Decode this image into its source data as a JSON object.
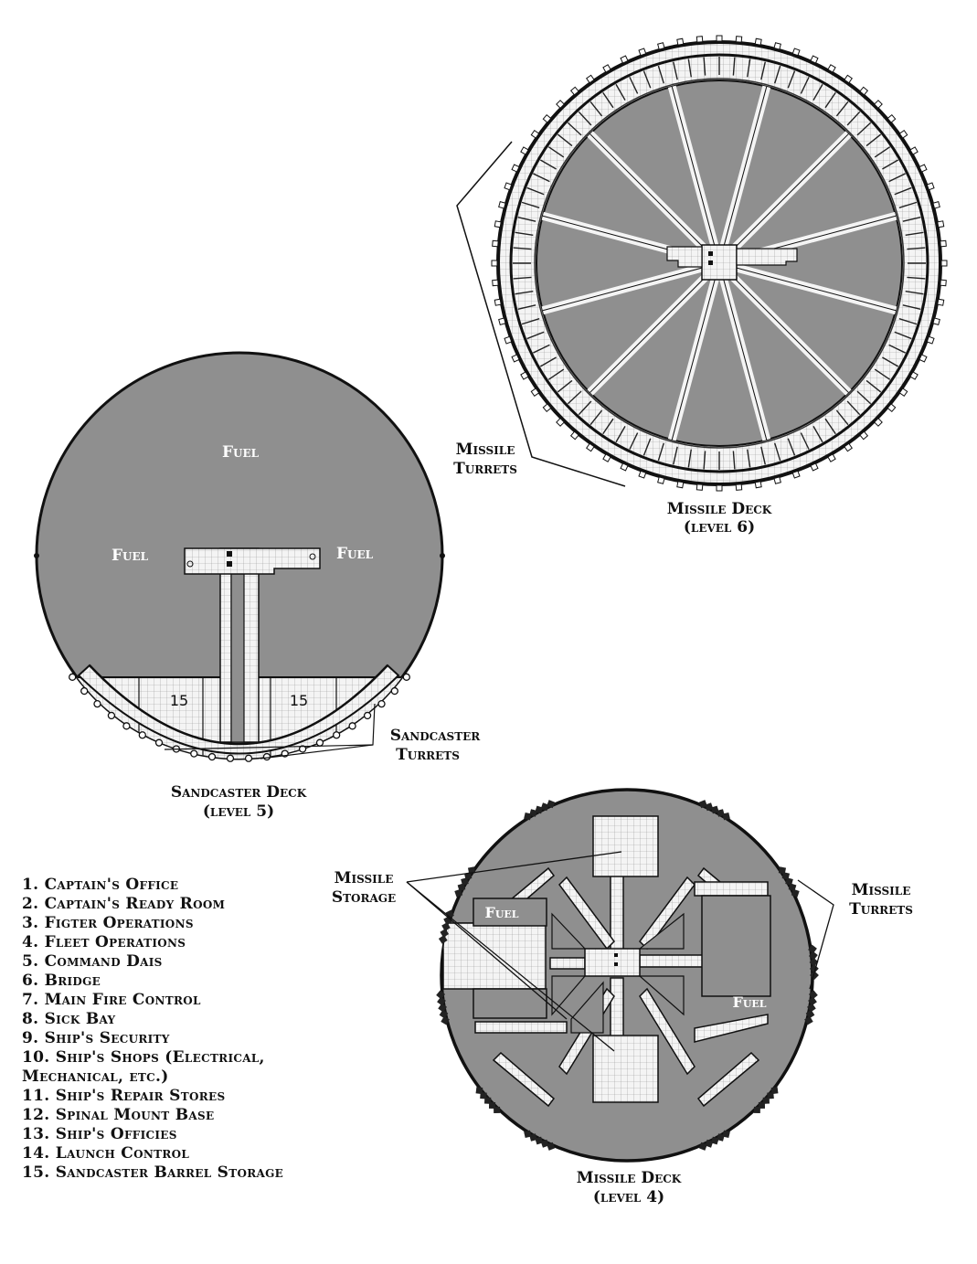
{
  "diagram": {
    "deck6": {
      "title": "Missile Deck",
      "level": "(level 6)",
      "turret_callout_line1": "Missile",
      "turret_callout_line2": "Turrets"
    },
    "deck5": {
      "title": "Sandcaster Deck",
      "level": "(level 5)",
      "fuel_top": "Fuel",
      "fuel_left": "Fuel",
      "fuel_right": "Fuel",
      "room_left": "15",
      "room_right": "15",
      "turret_callout_line1": "Sandcaster",
      "turret_callout_line2": "Turrets"
    },
    "deck4": {
      "title": "Missile Deck",
      "level": "(level 4)",
      "fuel_a": "Fuel",
      "fuel_b": "Fuel",
      "storage_line1": "Missile",
      "storage_line2": "Storage",
      "turret_callout_line1": "Missile",
      "turret_callout_line2": "Turrets"
    },
    "colors": {
      "fill": "#8f8f8f",
      "grid": "#f4f4f4",
      "ink": "#111111"
    }
  },
  "legend": [
    "1.  Captain's Office",
    "2.  Captain's Ready Room",
    "3.  Figter Operations",
    "4.  Fleet Operations",
    "5.  Command Dais",
    "6.  Bridge",
    "7.  Main Fire Control",
    "8.  Sick Bay",
    "9.  Ship's Security",
    "10.  Ship's Shops (Electrical,",
    "Mechanical, etc.)",
    "11.  Ship's Repair Stores",
    "12.  Spinal Mount Base",
    "13.  Ship's Officies",
    "14.  Launch Control",
    "15.  Sandcaster Barrel Storage"
  ]
}
